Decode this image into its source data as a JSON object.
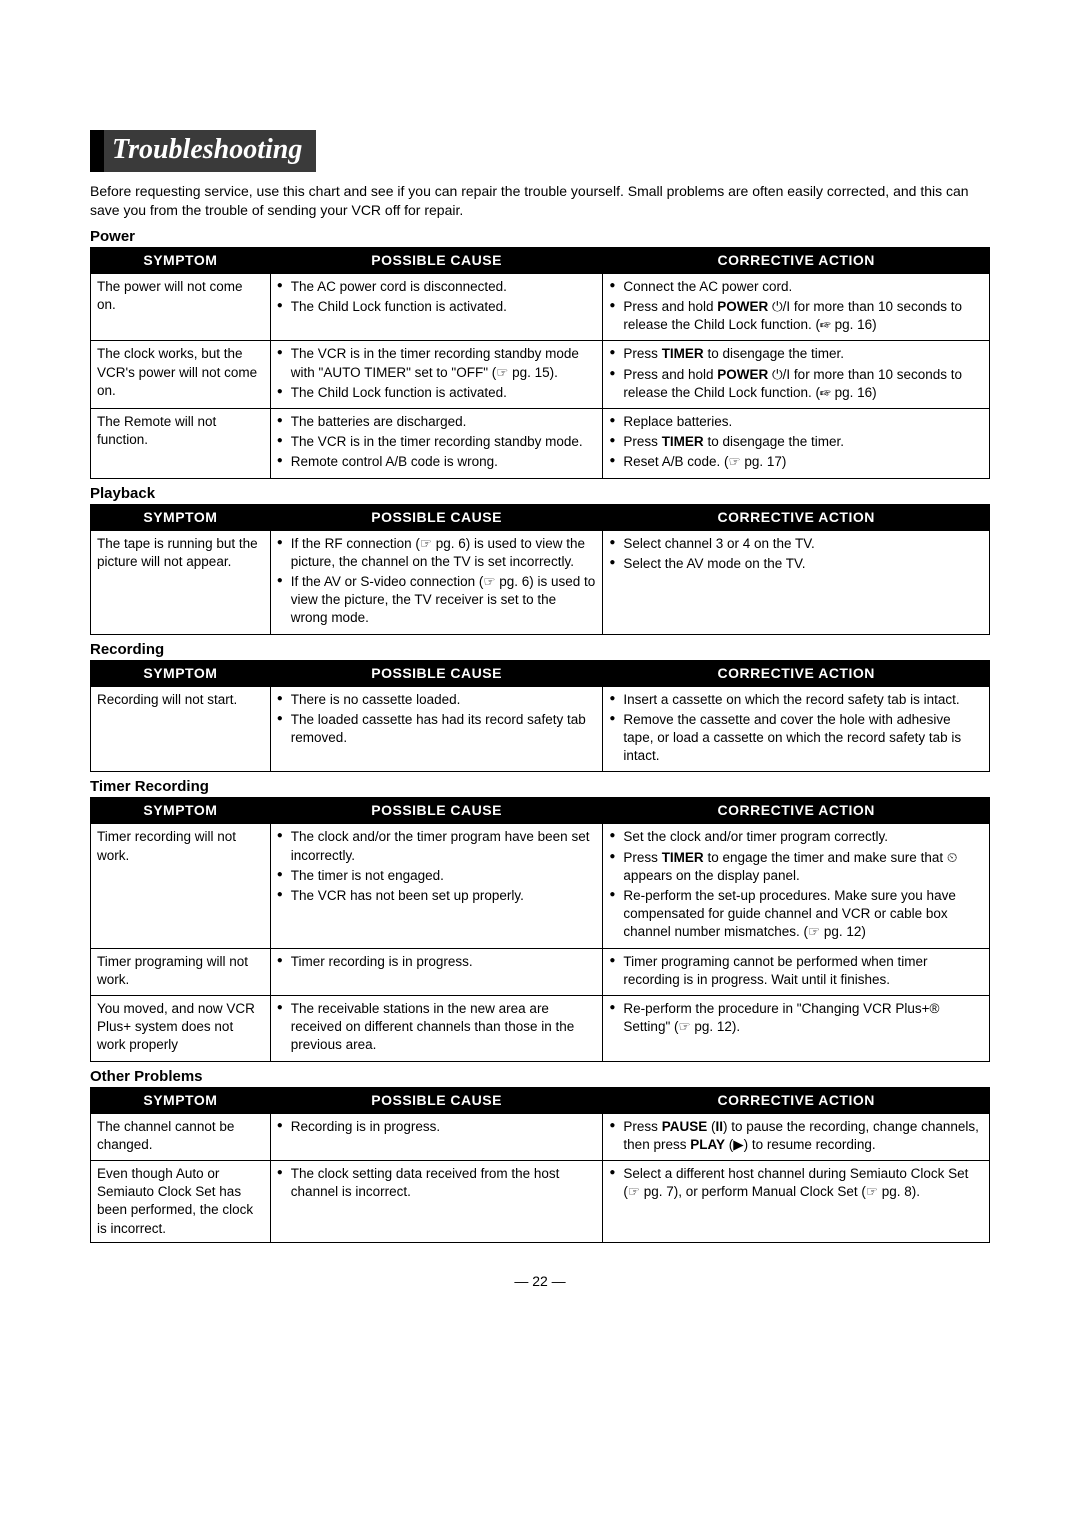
{
  "title": "Troubleshooting",
  "intro": "Before requesting service, use this chart and see if you can repair the trouble yourself. Small problems are often easily corrected, and this can save you from the trouble of sending your VCR off for repair.",
  "headers": {
    "symptom": "SYMPTOM",
    "cause": "POSSIBLE CAUSE",
    "action": "CORRECTIVE ACTION"
  },
  "ref_icon": "☞",
  "page_number": "— 22 —",
  "sections": [
    {
      "label": "Power",
      "rows": [
        {
          "symptom": "The power will not come on.",
          "causes": [
            "The AC power cord is disconnected.",
            "The Child Lock function is activated."
          ],
          "actions": [
            "Connect the AC power cord.",
            "Press and hold <b>POWER</b> ⏻/I for more than 10 seconds to release the Child Lock function. (☞ pg. 16)"
          ]
        },
        {
          "symptom": "The clock works, but the VCR's power will not come on.",
          "causes": [
            "The VCR is in the timer recording standby mode with \"AUTO TIMER\" set to \"OFF\" (☞ pg. 15).",
            "The Child Lock function is activated."
          ],
          "actions": [
            "Press <b>TIMER</b> to disengage the timer.",
            "Press and hold <b>POWER</b> ⏻/I for more than 10 seconds to release the Child Lock function. (☞ pg. 16)"
          ]
        },
        {
          "symptom": "The Remote will not function.",
          "causes": [
            "The batteries are discharged.",
            "The VCR is in the timer recording standby mode.",
            "Remote control A/B code is wrong."
          ],
          "actions": [
            "Replace batteries.",
            "Press <b>TIMER</b> to disengage the timer.",
            "Reset A/B code. (☞ pg. 17)"
          ]
        }
      ]
    },
    {
      "label": "Playback",
      "rows": [
        {
          "symptom": "The tape is running but the picture will not appear.",
          "causes": [
            "If the RF connection (☞ pg. 6) is used to view the picture, the channel on the TV is set incorrectly.",
            "If the AV or S-video connection (☞ pg. 6) is used to view the picture, the TV receiver is set to the wrong mode."
          ],
          "actions": [
            "Select channel 3 or 4 on the TV.",
            "Select the AV mode on the TV."
          ]
        }
      ]
    },
    {
      "label": "Recording",
      "rows": [
        {
          "symptom": "Recording will not start.",
          "causes": [
            "There is no cassette loaded.",
            "The loaded cassette has had its record safety tab removed."
          ],
          "actions": [
            "Insert a cassette on which the record safety tab is intact.",
            "Remove the cassette and cover the hole with adhesive tape, or load a cassette on which the record safety tab is intact."
          ]
        }
      ]
    },
    {
      "label": "Timer Recording",
      "rows": [
        {
          "symptom": "Timer recording will not work.",
          "causes": [
            "The clock and/or the timer program have been set incorrectly.",
            "The timer is not engaged.",
            "The VCR has not been set up properly."
          ],
          "actions": [
            "Set the clock and/or timer program correctly.",
            "Press <b>TIMER</b> to engage the timer and make sure that ⏲ appears on the display panel.",
            "Re-perform the set-up procedures. Make sure you have compensated for guide channel and VCR or cable box channel number mismatches. (☞ pg. 12)"
          ]
        },
        {
          "symptom": "Timer programing will not work.",
          "causes": [
            "Timer recording is in progress."
          ],
          "actions": [
            "Timer programing cannot be performed when timer recording is in progress. Wait until it finishes."
          ]
        },
        {
          "symptom": "You moved, and now VCR Plus+ system does not work properly",
          "causes": [
            "The receivable stations in the new area are received on different channels than those in the previous area."
          ],
          "actions": [
            "Re-perform the procedure in \"Changing VCR Plus+® Setting\" (☞ pg. 12)."
          ]
        }
      ]
    },
    {
      "label": "Other Problems",
      "rows": [
        {
          "symptom": "The channel cannot be changed.",
          "causes": [
            "Recording is in progress."
          ],
          "actions": [
            "Press <b>PAUSE</b> (<b>II</b>) to pause the recording, change channels, then press <b>PLAY</b> (▶) to resume recording."
          ]
        },
        {
          "symptom": "Even though Auto or Semiauto Clock Set has been performed, the clock is incorrect.",
          "causes": [
            "The clock setting data received from the host channel is incorrect."
          ],
          "actions": [
            "Select a different host channel during Semiauto Clock Set (☞ pg. 7), or perform Manual Clock Set (☞ pg. 8)."
          ]
        }
      ]
    }
  ]
}
